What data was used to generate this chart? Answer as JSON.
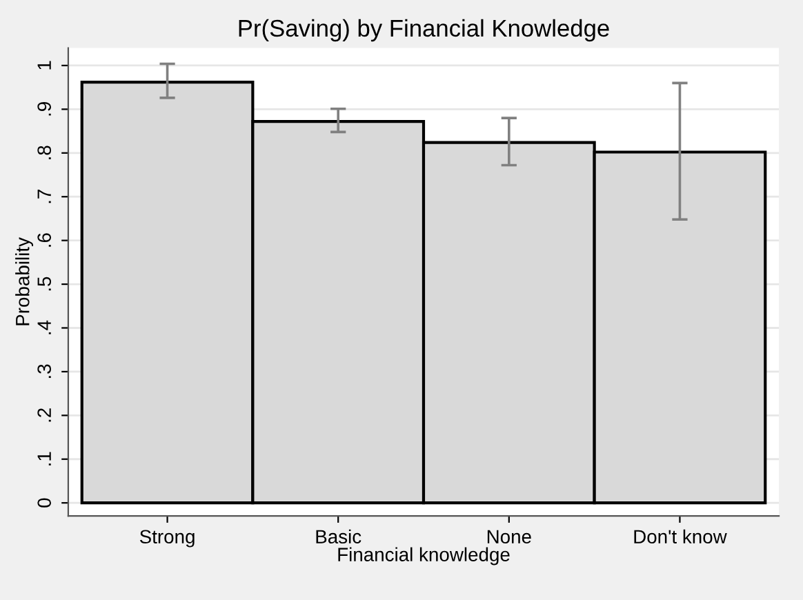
{
  "chart_data": {
    "type": "bar",
    "title": "Pr(Saving) by Financial Knowledge",
    "xlabel": "Financial knowledge",
    "ylabel": "Probability",
    "categories": [
      "Strong",
      "Basic",
      "None",
      "Don't know"
    ],
    "values": [
      0.962,
      0.872,
      0.824,
      0.802
    ],
    "errors": [
      [
        0.926,
        1.004
      ],
      [
        0.848,
        0.901
      ],
      [
        0.772,
        0.88
      ],
      [
        0.648,
        0.96
      ]
    ],
    "color": "#d9d9d9",
    "ylim": [
      -0.03,
      1.04
    ],
    "yticks": [
      0,
      {
        "value": 0.1,
        "label": ".1"
      },
      {
        "value": 0.2,
        "label": ".2"
      },
      {
        "value": 0.3,
        "label": ".3"
      },
      {
        "value": 0.4,
        "label": ".4"
      },
      {
        "value": 0.5,
        "label": ".5"
      },
      {
        "value": 0.6,
        "label": ".6"
      },
      {
        "value": 0.7,
        "label": ".7"
      },
      {
        "value": 0.8,
        "label": ".8"
      },
      {
        "value": 0.9,
        "label": ".9"
      },
      1
    ],
    "grid": "y",
    "legend": false
  }
}
